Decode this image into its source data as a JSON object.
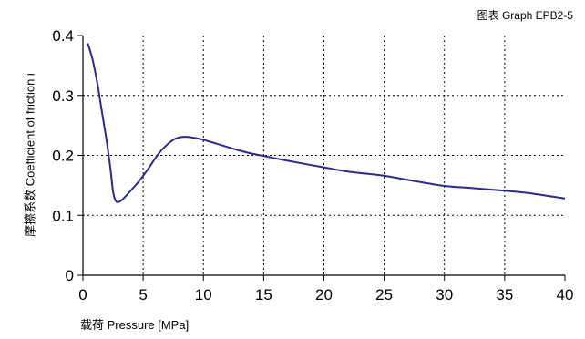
{
  "figure_id": "图表 Graph EPB2-5",
  "chart_data": {
    "type": "line",
    "title": "",
    "xlabel": "载荷 Pressure [MPa]",
    "ylabel": "摩擦系数 Coefficient of friction i",
    "xlim": [
      0,
      40
    ],
    "ylim": [
      0,
      0.4
    ],
    "x_ticks": [
      "0",
      "5",
      "10",
      "15",
      "20",
      "25",
      "30",
      "35",
      "40"
    ],
    "y_ticks": [
      "0",
      "0.1",
      "0.2",
      "0.3",
      "0.4"
    ],
    "grid": true,
    "grid_style": "dotted",
    "line_color": "#2b2b8f",
    "series": [
      {
        "x": [
          0.4,
          0.8,
          1.2,
          1.6,
          2.0,
          2.3,
          2.5,
          2.7,
          2.9,
          3.2,
          3.6,
          4.0,
          4.5,
          5.0,
          5.5,
          6.0,
          6.5,
          7.0,
          7.5,
          8.0,
          8.5,
          9.0,
          10.0,
          11.0,
          12.0,
          13.0,
          14.0,
          15.0,
          17.0,
          20.0,
          22.0,
          25.0,
          27.0,
          30.0,
          32.0,
          35.0,
          37.0,
          40.0
        ],
        "values": [
          0.387,
          0.36,
          0.32,
          0.27,
          0.22,
          0.175,
          0.14,
          0.125,
          0.122,
          0.125,
          0.133,
          0.142,
          0.153,
          0.166,
          0.18,
          0.195,
          0.208,
          0.218,
          0.226,
          0.23,
          0.231,
          0.23,
          0.226,
          0.22,
          0.214,
          0.208,
          0.203,
          0.199,
          0.191,
          0.18,
          0.173,
          0.166,
          0.159,
          0.149,
          0.146,
          0.141,
          0.137,
          0.128
        ]
      }
    ]
  }
}
